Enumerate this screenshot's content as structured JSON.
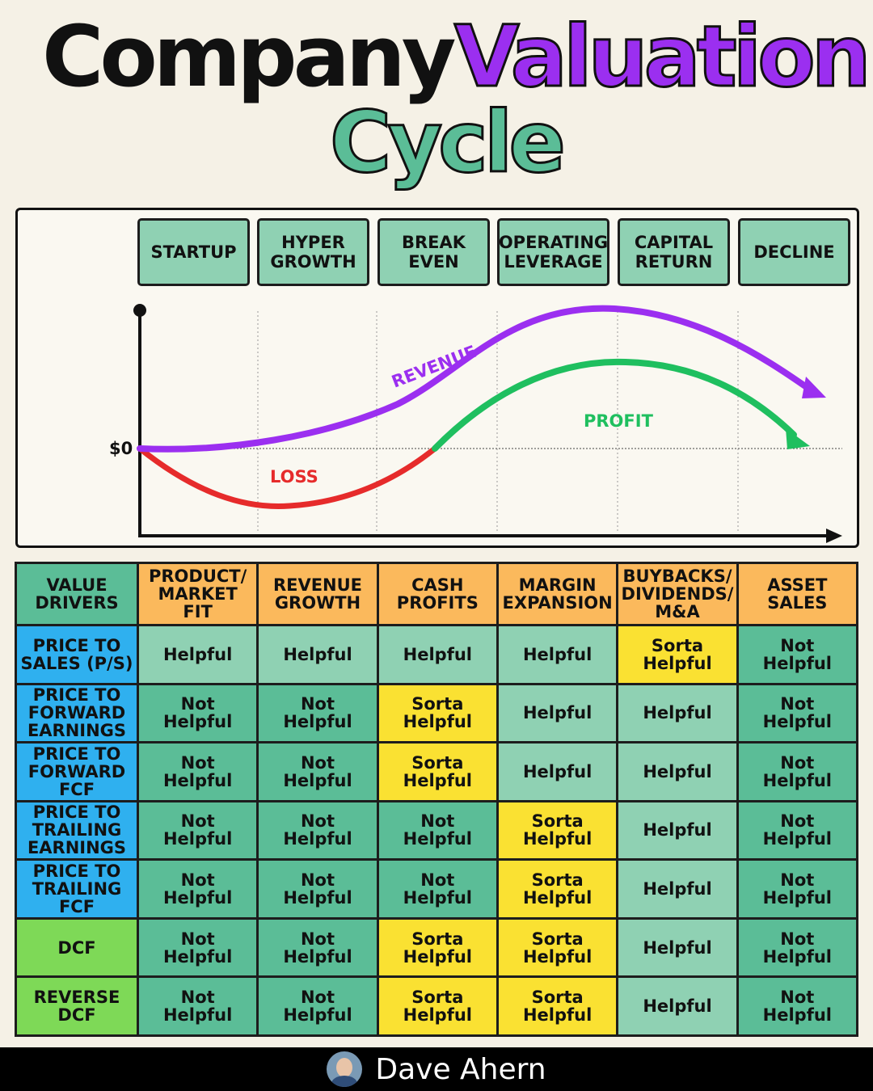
{
  "title": {
    "word1": "Company",
    "word2": "Valuation",
    "word3": "Cycle",
    "colors": {
      "word1": "#111111",
      "word2": "#9b2ff0",
      "word3": "#5bbd97"
    }
  },
  "stages": [
    "STARTUP",
    "HYPER\nGROWTH",
    "BREAK\nEVEN",
    "OPERATING\nLEVERAGE",
    "CAPITAL\nRETURN",
    "DECLINE"
  ],
  "chart": {
    "zero_label": "$0",
    "revenue_label": "REVENUE",
    "profit_label": "PROFIT",
    "loss_label": "LOSS",
    "colors": {
      "revenue": "#9b2ff0",
      "profit": "#1fbf5f",
      "loss": "#e62b2b"
    }
  },
  "table": {
    "corner": "VALUE\nDRIVERS",
    "columns": [
      "PRODUCT/\nMARKET FIT",
      "REVENUE\nGROWTH",
      "CASH\nPROFITS",
      "MARGIN\nEXPANSION",
      "BUYBACKS/\nDIVIDENDS/\nM&A",
      "ASSET\nSALES"
    ],
    "rows": [
      {
        "label": "PRICE TO\nSALES (P/S)",
        "group": "blue",
        "values": [
          "helpful",
          "helpful",
          "helpful",
          "helpful",
          "sorta",
          "not"
        ]
      },
      {
        "label": "PRICE TO\nFORWARD\nEARNINGS",
        "group": "blue",
        "values": [
          "not",
          "not",
          "sorta",
          "helpful",
          "helpful",
          "not"
        ]
      },
      {
        "label": "PRICE TO\nFORWARD\nFCF",
        "group": "blue",
        "values": [
          "not",
          "not",
          "sorta",
          "helpful",
          "helpful",
          "not"
        ]
      },
      {
        "label": "PRICE TO\nTRAILING\nEARNINGS",
        "group": "blue",
        "values": [
          "not",
          "not",
          "not",
          "sorta",
          "helpful",
          "not"
        ]
      },
      {
        "label": "PRICE TO\nTRAILING\nFCF",
        "group": "blue",
        "values": [
          "not",
          "not",
          "not",
          "sorta",
          "helpful",
          "not"
        ]
      },
      {
        "label": "DCF",
        "group": "green",
        "values": [
          "not",
          "not",
          "sorta",
          "sorta",
          "helpful",
          "not"
        ]
      },
      {
        "label": "REVERSE\nDCF",
        "group": "green",
        "values": [
          "not",
          "not",
          "sorta",
          "sorta",
          "helpful",
          "not"
        ]
      }
    ],
    "labels": {
      "helpful": "Helpful",
      "not": "Not\nHelpful",
      "sorta": "Sorta\nHelpful"
    }
  },
  "footer": {
    "name": "Dave Ahern"
  }
}
